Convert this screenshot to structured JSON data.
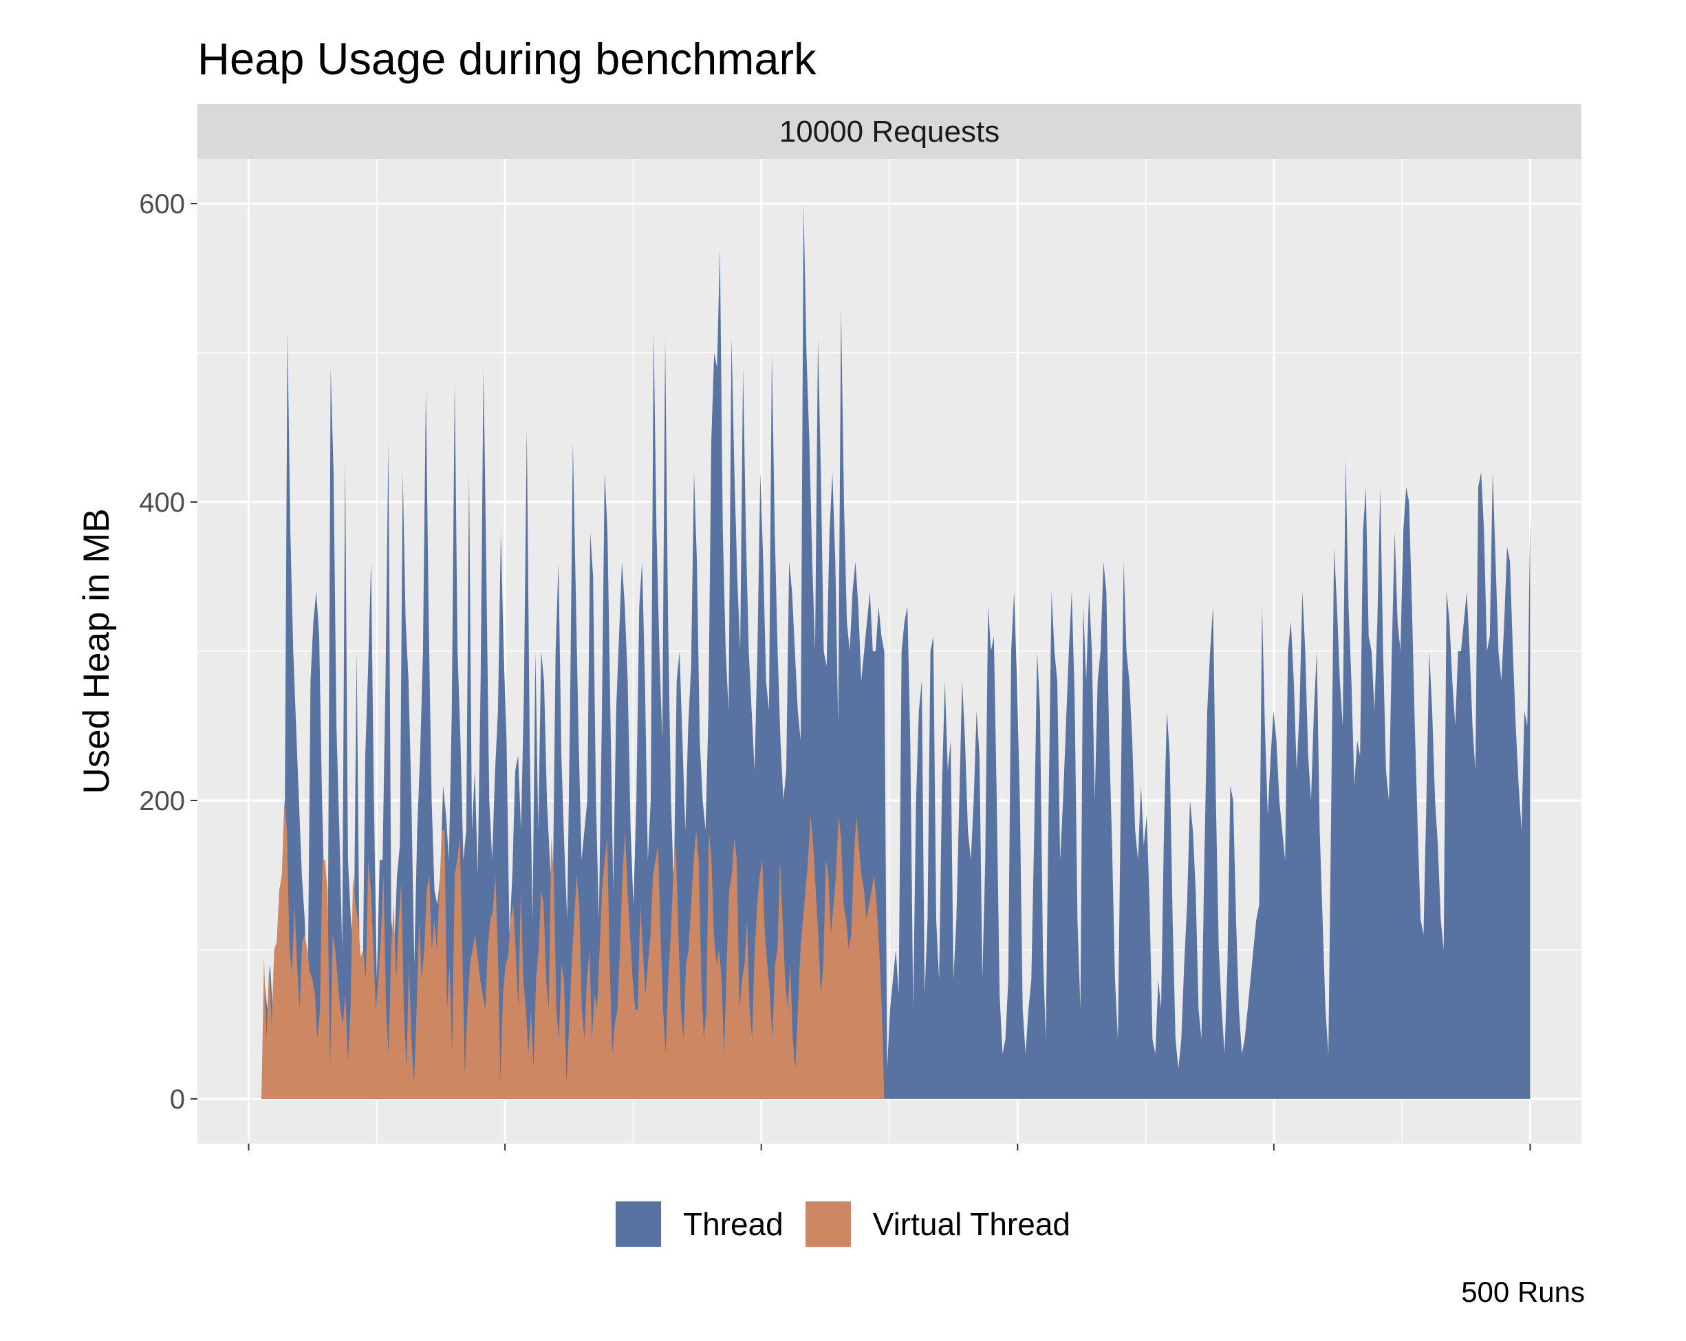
{
  "chart_data": {
    "type": "area",
    "title": "Heap Usage during benchmark",
    "facet_label": "10000 Requests",
    "xlabel": "",
    "ylabel": "Used Heap in MB",
    "caption": "500 Runs",
    "ylim": [
      -30,
      630
    ],
    "xlim": [
      -20,
      520
    ],
    "y_ticks": [
      0,
      200,
      400,
      600
    ],
    "y_tick_labels": [
      "0",
      "200",
      "400",
      "600"
    ],
    "grid": true,
    "legend_position": "bottom",
    "colors": {
      "Thread": "#5873a1",
      "Virtual Thread": "#cd8762",
      "panel": "#ebebeb",
      "strip": "#d9d9d9",
      "grid": "#ffffff"
    },
    "series": [
      {
        "name": "Virtual Thread",
        "x_start": 5,
        "x_end": 248,
        "values": [
          0,
          95,
          40,
          90,
          50,
          100,
          105,
          140,
          150,
          200,
          180,
          100,
          85,
          130,
          90,
          60,
          105,
          110,
          100,
          85,
          80,
          70,
          40,
          60,
          160,
          160,
          140,
          20,
          110,
          100,
          80,
          60,
          50,
          70,
          25,
          60,
          150,
          130,
          120,
          95,
          100,
          80,
          160,
          140,
          100,
          60,
          80,
          110,
          150,
          60,
          30,
          100,
          130,
          80,
          120,
          145,
          60,
          20,
          90,
          40,
          10,
          60,
          120,
          80,
          100,
          140,
          150,
          100,
          120,
          100,
          140,
          180,
          180,
          60,
          90,
          30,
          150,
          160,
          175,
          100,
          15,
          60,
          90,
          100,
          110,
          95,
          80,
          70,
          60,
          100,
          120,
          125,
          150,
          100,
          12,
          70,
          90,
          95,
          120,
          130,
          100,
          60,
          140,
          80,
          60,
          30,
          60,
          20,
          80,
          100,
          140,
          130,
          80,
          60,
          175,
          150,
          60,
          40,
          90,
          80,
          10,
          50,
          90,
          120,
          150,
          130,
          60,
          40,
          80,
          100,
          40,
          70,
          60,
          100,
          140,
          160,
          175,
          90,
          30,
          50,
          60,
          100,
          150,
          180,
          140,
          110,
          80,
          60,
          60,
          130,
          100,
          70,
          90,
          110,
          150,
          160,
          170,
          110,
          60,
          30,
          80,
          110,
          150,
          170,
          110,
          60,
          40,
          90,
          100,
          130,
          160,
          180,
          160,
          80,
          40,
          60,
          180,
          160,
          110,
          90,
          100,
          80,
          30,
          90,
          140,
          150,
          175,
          160,
          60,
          80,
          90,
          120,
          60,
          40,
          100,
          130,
          150,
          160,
          110,
          90,
          70,
          40,
          90,
          100,
          160,
          120,
          80,
          60,
          90,
          40,
          20,
          60,
          100,
          120,
          140,
          160,
          190,
          170,
          140,
          110,
          70,
          90,
          160,
          150,
          110,
          130,
          150,
          190,
          175,
          130,
          120,
          100,
          110,
          160,
          190,
          170,
          150,
          140,
          120,
          130,
          140,
          150,
          130,
          100,
          60,
          0
        ]
      },
      {
        "name": "Thread",
        "x_start": 5,
        "x_end": 500,
        "values": [
          0,
          80,
          60,
          90,
          55,
          100,
          110,
          140,
          160,
          515,
          380,
          300,
          250,
          200,
          150,
          120,
          60,
          280,
          320,
          340,
          310,
          200,
          120,
          100,
          490,
          420,
          250,
          180,
          100,
          430,
          160,
          120,
          100,
          300,
          90,
          60,
          230,
          290,
          360,
          200,
          80,
          160,
          160,
          280,
          440,
          120,
          100,
          150,
          170,
          420,
          320,
          280,
          200,
          90,
          180,
          230,
          300,
          475,
          320,
          200,
          140,
          130,
          150,
          210,
          190,
          160,
          260,
          480,
          300,
          240,
          160,
          180,
          420,
          180,
          220,
          150,
          280,
          490,
          350,
          200,
          160,
          220,
          260,
          380,
          300,
          240,
          110,
          150,
          220,
          230,
          180,
          270,
          450,
          240,
          120,
          300,
          180,
          300,
          280,
          200,
          160,
          130,
          300,
          360,
          230,
          170,
          120,
          260,
          440,
          340,
          240,
          160,
          180,
          200,
          380,
          350,
          200,
          120,
          250,
          420,
          380,
          260,
          140,
          260,
          310,
          360,
          330,
          280,
          180,
          130,
          200,
          330,
          360,
          280,
          160,
          200,
          515,
          380,
          300,
          240,
          510,
          320,
          200,
          140,
          280,
          300,
          240,
          180,
          250,
          290,
          420,
          360,
          240,
          200,
          180,
          260,
          440,
          500,
          490,
          570,
          380,
          300,
          260,
          510,
          420,
          350,
          300,
          490,
          380,
          300,
          260,
          220,
          300,
          420,
          360,
          280,
          260,
          500,
          380,
          300,
          240,
          200,
          220,
          360,
          340,
          300,
          260,
          240,
          600,
          500,
          440,
          360,
          300,
          510,
          420,
          300,
          290,
          380,
          420,
          360,
          250,
          530,
          400,
          320,
          300,
          340,
          360,
          330,
          280,
          300,
          320,
          340,
          300,
          300,
          330,
          310,
          300,
          20,
          60,
          80,
          100,
          70,
          300,
          320,
          330,
          240,
          60,
          200,
          260,
          280,
          70,
          120,
          300,
          310,
          120,
          80,
          210,
          280,
          220,
          240,
          80,
          120,
          200,
          280,
          240,
          180,
          160,
          200,
          260,
          230,
          80,
          160,
          330,
          300,
          310,
          200,
          70,
          30,
          40,
          80,
          300,
          340,
          280,
          200,
          60,
          30,
          60,
          80,
          180,
          300,
          260,
          100,
          40,
          200,
          340,
          300,
          280,
          160,
          200,
          250,
          300,
          340,
          270,
          120,
          60,
          330,
          280,
          340,
          300,
          200,
          280,
          300,
          360,
          340,
          240,
          170,
          80,
          40,
          200,
          360,
          300,
          280,
          240,
          180,
          160,
          210,
          170,
          190,
          130,
          40,
          30,
          80,
          60,
          180,
          260,
          230,
          120,
          40,
          20,
          40,
          90,
          130,
          200,
          180,
          140,
          60,
          40,
          160,
          260,
          300,
          330,
          200,
          100,
          60,
          30,
          90,
          210,
          200,
          120,
          60,
          30,
          40,
          60,
          80,
          100,
          120,
          130,
          330,
          250,
          190,
          230,
          260,
          240,
          200,
          180,
          160,
          300,
          320,
          280,
          220,
          260,
          340,
          300,
          230,
          200,
          260,
          300,
          180,
          120,
          60,
          30,
          200,
          370,
          330,
          280,
          250,
          430,
          330,
          280,
          210,
          240,
          230,
          380,
          410,
          310,
          300,
          260,
          320,
          410,
          300,
          220,
          200,
          300,
          380,
          320,
          300,
          380,
          410,
          400,
          330,
          250,
          180,
          120,
          110,
          200,
          300,
          260,
          200,
          170,
          120,
          100,
          340,
          320,
          280,
          250,
          300,
          300,
          320,
          340,
          300,
          250,
          220,
          410,
          420,
          380,
          300,
          310,
          420,
          360,
          300,
          280,
          320,
          370,
          360,
          300,
          250,
          210,
          180,
          260,
          250,
          390
        ]
      }
    ]
  }
}
